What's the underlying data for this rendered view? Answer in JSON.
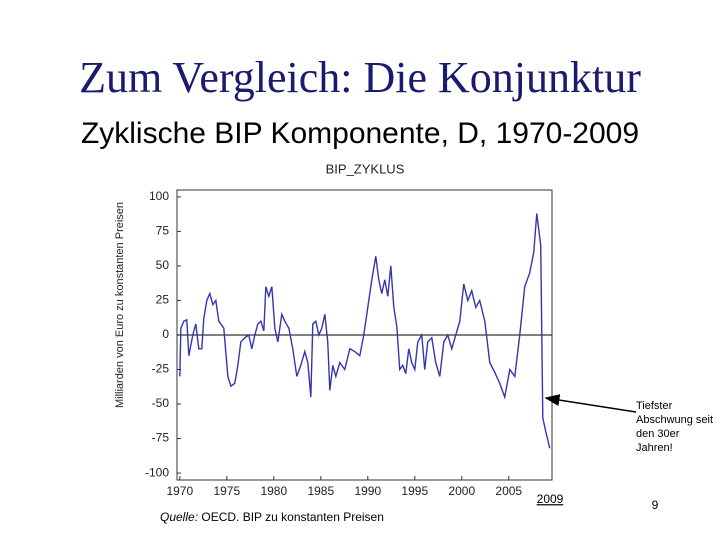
{
  "slide": {
    "title": "Zum Vergleich: Die Konjunktur",
    "subtitle": "Zyklische BIP Komponente, D, 1970-2009",
    "annotation": [
      "Tiefster",
      "Abschwung seit",
      "den 30er",
      "Jahren!"
    ],
    "year_note": "2009",
    "page_number": "9",
    "source_label": "Quelle:",
    "source_text": " OECD. BIP zu konstanten Preisen"
  },
  "chart_data": {
    "type": "line",
    "title": "BIP_ZYKLUS",
    "y_label": "Milliarden von Euro zu konstanten Preisen",
    "xlim": [
      1969.7,
      2009.6
    ],
    "xticks": [
      1970,
      1975,
      1980,
      1985,
      1990,
      1995,
      2000,
      2005
    ],
    "ylim": [
      -105,
      105
    ],
    "yticks": [
      -100,
      -75,
      -50,
      -25,
      0,
      25,
      50,
      75,
      100
    ],
    "hline": 0,
    "x": [
      1970.0,
      1970.11,
      1970.43,
      1970.74,
      1970.96,
      1971.38,
      1971.7,
      1972.02,
      1972.34,
      1972.55,
      1972.87,
      1973.19,
      1973.51,
      1973.83,
      1974.15,
      1974.68,
      1975.11,
      1975.43,
      1975.85,
      1976.17,
      1976.49,
      1976.91,
      1977.34,
      1977.66,
      1977.98,
      1978.3,
      1978.62,
      1978.94,
      1979.15,
      1979.47,
      1979.79,
      1980.11,
      1980.43,
      1980.85,
      1981.17,
      1981.6,
      1982.02,
      1982.45,
      1982.87,
      1983.3,
      1983.62,
      1983.94,
      1984.15,
      1984.47,
      1984.79,
      1985.11,
      1985.43,
      1985.74,
      1985.96,
      1986.28,
      1986.6,
      1987.02,
      1987.55,
      1988.09,
      1988.62,
      1989.15,
      1989.57,
      1990.0,
      1990.43,
      1990.85,
      1991.17,
      1991.49,
      1991.81,
      1992.13,
      1992.45,
      1992.77,
      1993.09,
      1993.4,
      1993.72,
      1994.04,
      1994.36,
      1994.68,
      1995.0,
      1995.32,
      1995.74,
      1996.06,
      1996.38,
      1996.81,
      1997.23,
      1997.66,
      1998.09,
      1998.51,
      1998.94,
      1999.36,
      1999.79,
      2000.21,
      2000.64,
      2001.06,
      2001.49,
      2001.91,
      2002.45,
      2002.98,
      2003.51,
      2004.04,
      2004.57,
      2005.11,
      2005.64,
      2006.17,
      2006.7,
      2007.23,
      2007.66,
      2007.98,
      2008.4,
      2008.62,
      2008.94,
      2009.36
    ],
    "series": [
      {
        "name": "BIP_ZYKLUS",
        "color": "#3535b0",
        "values": [
          -30,
          5,
          10,
          11,
          -15,
          0,
          8,
          -10,
          -10,
          12,
          25,
          30,
          22,
          25,
          10,
          5,
          -30,
          -37,
          -35,
          -22,
          -5,
          -2,
          0,
          -10,
          0,
          8,
          10,
          3,
          35,
          28,
          35,
          5,
          -5,
          15,
          10,
          5,
          -10,
          -30,
          -22,
          -12,
          -20,
          -45,
          8,
          10,
          0,
          5,
          15,
          -5,
          -40,
          -22,
          -30,
          -20,
          -25,
          -10,
          -12,
          -15,
          0,
          20,
          40,
          57,
          40,
          30,
          40,
          28,
          50,
          20,
          6,
          -25,
          -22,
          -28,
          -10,
          -20,
          -25,
          -5,
          0,
          -25,
          -5,
          -2,
          -20,
          -30,
          -5,
          0,
          -10,
          0,
          10,
          37,
          25,
          32,
          20,
          25,
          10,
          -20,
          -27,
          -35,
          -45,
          -25,
          -30,
          0,
          35,
          45,
          60,
          88,
          65,
          -60,
          -70,
          -82
        ]
      }
    ]
  }
}
